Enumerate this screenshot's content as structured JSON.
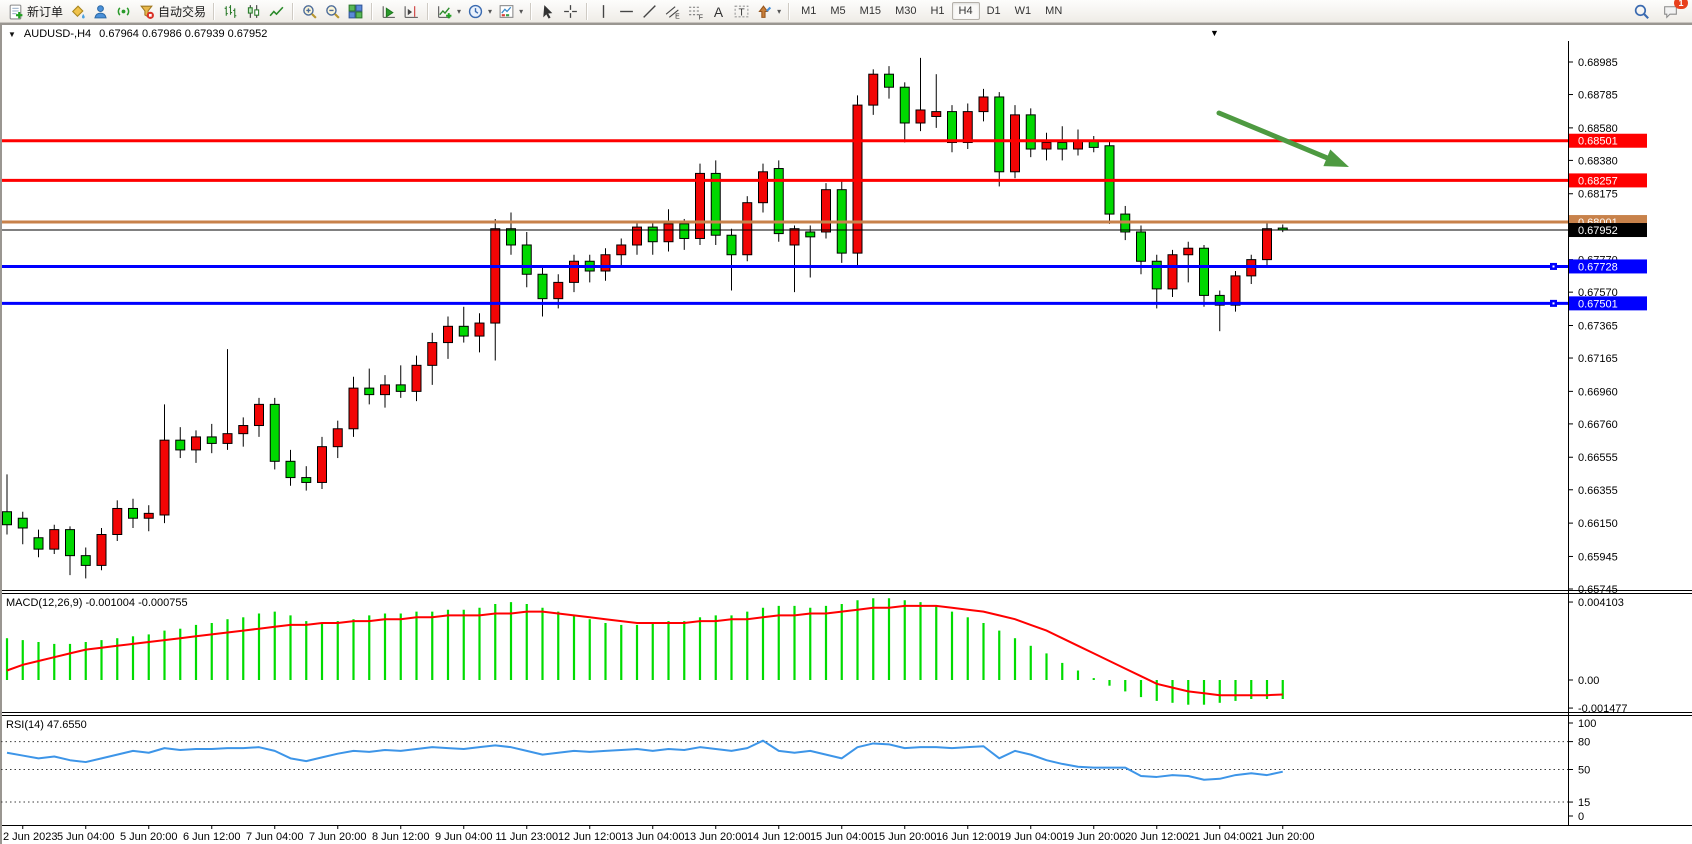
{
  "window": {
    "title_symbol": "AUDUSD-,H4",
    "ohlc": "0.67964 0.67986 0.67939 0.67952",
    "shift_marker": "▼"
  },
  "toolbar": {
    "groups": [
      {
        "items": [
          {
            "name": "new-order-button",
            "icon": "new-order-icon",
            "label": "新订单"
          },
          {
            "name": "styler-button",
            "icon": "bucket-icon"
          },
          {
            "name": "profile-button",
            "icon": "profile-icon"
          },
          {
            "name": "signals-button",
            "icon": "signal-icon"
          },
          {
            "name": "autotrade-button",
            "icon": "autotrade-icon",
            "label": "自动交易"
          }
        ]
      },
      {
        "items": [
          {
            "name": "bar-chart-button",
            "icon": "bar-chart-icon"
          },
          {
            "name": "candlestick-button",
            "icon": "candlestick-icon"
          },
          {
            "name": "line-chart-button",
            "icon": "line-chart-icon"
          }
        ]
      },
      {
        "items": [
          {
            "name": "zoom-in-button",
            "icon": "zoom-in-icon"
          },
          {
            "name": "zoom-out-button",
            "icon": "zoom-out-icon"
          },
          {
            "name": "tile-windows-button",
            "icon": "tile-windows-icon"
          }
        ]
      },
      {
        "items": [
          {
            "name": "autoscroll-button",
            "icon": "autoscroll-icon"
          },
          {
            "name": "chart-shift-button",
            "icon": "chart-shift-icon"
          }
        ]
      },
      {
        "items": [
          {
            "name": "indicators-button",
            "icon": "indicators-icon",
            "caret": true
          },
          {
            "name": "periods-button",
            "icon": "periods-icon",
            "caret": true
          },
          {
            "name": "templates-button",
            "icon": "templates-icon",
            "caret": true
          }
        ]
      },
      {
        "items": [
          {
            "name": "cursor-button",
            "icon": "cursor-icon"
          },
          {
            "name": "crosshair-button",
            "icon": "crosshair-icon"
          }
        ]
      },
      {
        "items": [
          {
            "name": "vline-button",
            "icon": "vline-icon"
          },
          {
            "name": "hline-button",
            "icon": "hline-icon"
          },
          {
            "name": "trendline-button",
            "icon": "trendline-icon"
          },
          {
            "name": "channel-button",
            "icon": "channel-icon"
          },
          {
            "name": "fibonacci-button",
            "icon": "fibonacci-icon"
          },
          {
            "name": "text-button",
            "icon": "text-icon"
          },
          {
            "name": "label-button",
            "icon": "label-icon"
          },
          {
            "name": "shapes-button",
            "icon": "shapes-icon",
            "caret": true
          }
        ]
      }
    ],
    "timeframes": {
      "items": [
        "M1",
        "M5",
        "M15",
        "M30",
        "H1",
        "H4",
        "D1",
        "W1",
        "MN"
      ],
      "active": "H4"
    },
    "right": [
      {
        "name": "search-button",
        "icon": "search-icon"
      },
      {
        "name": "chat-button",
        "icon": "chat-icon",
        "badge": "1"
      }
    ]
  },
  "colors": {
    "bull": "#f20505",
    "bear": "#00d800",
    "outline": "#000000",
    "macd_hist": "#00dc00",
    "macd_signal": "#ff0000",
    "rsi_line": "#3d95e8",
    "arrow": "#4e9a41",
    "level_red": "#ff0000",
    "level_blue": "#0000ff",
    "level_orange": "#c8824b",
    "level_black": "#000000"
  },
  "price_axis": {
    "ticks": [
      "0.68985",
      "0.68785",
      "0.68580",
      "0.68380",
      "0.68175",
      "0.67770",
      "0.67570",
      "0.67365",
      "0.67165",
      "0.66960",
      "0.66760",
      "0.66555",
      "0.66355",
      "0.66150",
      "0.65945",
      "0.65745"
    ]
  },
  "levels": [
    {
      "name": "resistance-line-1",
      "price": 0.68501,
      "label": "0.68501",
      "color": "#ff0000",
      "width": 3,
      "handle": false
    },
    {
      "name": "resistance-line-2",
      "price": 0.68257,
      "label": "0.68257",
      "color": "#ff0000",
      "width": 3,
      "handle": false
    },
    {
      "name": "order-line",
      "price": 0.68001,
      "label": "0.68001",
      "color": "#c8824b",
      "width": 3,
      "handle": false
    },
    {
      "name": "current-price-line",
      "price": 0.67952,
      "label": "0.67952",
      "color": "#000000",
      "width": 1,
      "handle": false
    },
    {
      "name": "support-line-1",
      "price": 0.67728,
      "label": "0.67728",
      "color": "#0000ff",
      "width": 3,
      "handle": true
    },
    {
      "name": "support-line-2",
      "price": 0.67501,
      "label": "0.67501",
      "color": "#0000ff",
      "width": 3,
      "handle": true
    }
  ],
  "time_axis": {
    "labels": [
      "2 Jun 2023",
      "5 Jun 04:00",
      "5 Jun 20:00",
      "6 Jun 12:00",
      "7 Jun 04:00",
      "7 Jun 20:00",
      "8 Jun 12:00",
      "9 Jun 04:00",
      "11 Jun 23:00",
      "12 Jun 12:00",
      "13 Jun 04:00",
      "13 Jun 20:00",
      "14 Jun 12:00",
      "15 Jun 04:00",
      "15 Jun 20:00",
      "16 Jun 12:00",
      "19 Jun 04:00",
      "19 Jun 20:00",
      "20 Jun 12:00",
      "21 Jun 04:00",
      "21 Jun 20:00"
    ]
  },
  "candles": [
    [
      0.6622,
      0.6645,
      0.6608,
      0.6614
    ],
    [
      0.6618,
      0.6622,
      0.6602,
      0.6612
    ],
    [
      0.6606,
      0.6611,
      0.6594,
      0.6599
    ],
    [
      0.6599,
      0.6614,
      0.6596,
      0.6611
    ],
    [
      0.6611,
      0.6613,
      0.6583,
      0.6595
    ],
    [
      0.6595,
      0.66,
      0.6581,
      0.6589
    ],
    [
      0.6589,
      0.6612,
      0.6586,
      0.6608
    ],
    [
      0.6608,
      0.6629,
      0.6604,
      0.6624
    ],
    [
      0.6624,
      0.663,
      0.6612,
      0.6618
    ],
    [
      0.6618,
      0.6626,
      0.661,
      0.6621
    ],
    [
      0.662,
      0.6688,
      0.6615,
      0.6666
    ],
    [
      0.6666,
      0.6674,
      0.6655,
      0.666
    ],
    [
      0.666,
      0.6672,
      0.6652,
      0.6668
    ],
    [
      0.6668,
      0.6676,
      0.6658,
      0.6664
    ],
    [
      0.6664,
      0.6722,
      0.666,
      0.667
    ],
    [
      0.667,
      0.668,
      0.6662,
      0.6675
    ],
    [
      0.6675,
      0.6692,
      0.6668,
      0.6688
    ],
    [
      0.6688,
      0.6692,
      0.6648,
      0.6653
    ],
    [
      0.6653,
      0.666,
      0.6638,
      0.6643
    ],
    [
      0.6643,
      0.665,
      0.6635,
      0.664
    ],
    [
      0.664,
      0.6668,
      0.6636,
      0.6662
    ],
    [
      0.6662,
      0.6678,
      0.6655,
      0.6673
    ],
    [
      0.6673,
      0.6705,
      0.6668,
      0.6698
    ],
    [
      0.6698,
      0.671,
      0.6688,
      0.6694
    ],
    [
      0.6694,
      0.6706,
      0.6686,
      0.67
    ],
    [
      0.67,
      0.6712,
      0.6692,
      0.6696
    ],
    [
      0.6696,
      0.6718,
      0.669,
      0.6712
    ],
    [
      0.6712,
      0.6732,
      0.67,
      0.6726
    ],
    [
      0.6726,
      0.6742,
      0.6716,
      0.6736
    ],
    [
      0.6736,
      0.6748,
      0.6726,
      0.673
    ],
    [
      0.673,
      0.6744,
      0.672,
      0.6738
    ],
    [
      0.6738,
      0.6802,
      0.6715,
      0.6796
    ],
    [
      0.6796,
      0.6806,
      0.678,
      0.6786
    ],
    [
      0.6786,
      0.6794,
      0.676,
      0.6768
    ],
    [
      0.6768,
      0.6772,
      0.6742,
      0.6753
    ],
    [
      0.6753,
      0.6768,
      0.6747,
      0.6763
    ],
    [
      0.6763,
      0.678,
      0.6757,
      0.6776
    ],
    [
      0.6776,
      0.678,
      0.6763,
      0.677
    ],
    [
      0.677,
      0.6784,
      0.6764,
      0.678
    ],
    [
      0.678,
      0.679,
      0.6772,
      0.6786
    ],
    [
      0.6786,
      0.6801,
      0.678,
      0.6797
    ],
    [
      0.6797,
      0.68,
      0.678,
      0.6788
    ],
    [
      0.6788,
      0.6808,
      0.6782,
      0.6799
    ],
    [
      0.6799,
      0.6802,
      0.6783,
      0.679
    ],
    [
      0.679,
      0.6836,
      0.6786,
      0.683
    ],
    [
      0.683,
      0.6838,
      0.6786,
      0.6792
    ],
    [
      0.6792,
      0.6796,
      0.6758,
      0.678
    ],
    [
      0.678,
      0.6816,
      0.6776,
      0.6812
    ],
    [
      0.6812,
      0.6836,
      0.6806,
      0.6831
    ],
    [
      0.6833,
      0.6838,
      0.6788,
      0.6793
    ],
    [
      0.6786,
      0.6798,
      0.6757,
      0.6796
    ],
    [
      0.6794,
      0.6798,
      0.6766,
      0.6791
    ],
    [
      0.6794,
      0.6824,
      0.679,
      0.682
    ],
    [
      0.682,
      0.6826,
      0.6775,
      0.6781
    ],
    [
      0.6781,
      0.6878,
      0.6772,
      0.6872
    ],
    [
      0.6872,
      0.6894,
      0.6866,
      0.6891
    ],
    [
      0.6891,
      0.6896,
      0.6876,
      0.6883
    ],
    [
      0.6883,
      0.6886,
      0.6849,
      0.6861
    ],
    [
      0.6861,
      0.6901,
      0.6856,
      0.6869
    ],
    [
      0.6865,
      0.6891,
      0.6858,
      0.6868
    ],
    [
      0.6868,
      0.6872,
      0.6843,
      0.6849
    ],
    [
      0.6849,
      0.6873,
      0.6845,
      0.6868
    ],
    [
      0.6868,
      0.6882,
      0.6862,
      0.6877
    ],
    [
      0.6877,
      0.688,
      0.6822,
      0.6831
    ],
    [
      0.6831,
      0.6872,
      0.6827,
      0.6866
    ],
    [
      0.6866,
      0.687,
      0.684,
      0.6845
    ],
    [
      0.6845,
      0.6855,
      0.6838,
      0.6849
    ],
    [
      0.6849,
      0.6859,
      0.6838,
      0.6845
    ],
    [
      0.6845,
      0.6857,
      0.6841,
      0.685
    ],
    [
      0.685,
      0.6853,
      0.6843,
      0.6846
    ],
    [
      0.6847,
      0.685,
      0.6799,
      0.6805
    ],
    [
      0.6805,
      0.681,
      0.6789,
      0.6794
    ],
    [
      0.6794,
      0.6798,
      0.6768,
      0.6776
    ],
    [
      0.6776,
      0.678,
      0.6747,
      0.6759
    ],
    [
      0.6759,
      0.6783,
      0.6754,
      0.678
    ],
    [
      0.678,
      0.6788,
      0.6763,
      0.6784
    ],
    [
      0.6784,
      0.6786,
      0.6748,
      0.6755
    ],
    [
      0.6755,
      0.6758,
      0.6733,
      0.6749
    ],
    [
      0.6749,
      0.677,
      0.6745,
      0.6767
    ],
    [
      0.6767,
      0.678,
      0.6762,
      0.6777
    ],
    [
      0.6777,
      0.68,
      0.6772,
      0.6796
    ],
    [
      0.67964,
      0.67986,
      0.67939,
      0.67952
    ]
  ],
  "macd": {
    "label": "MACD(12,26,9) -0.001004 -0.000755",
    "params": "12,26,9",
    "value": "-0.001004",
    "signal_value": "-0.000755",
    "axis_ticks": [
      "0.004103",
      "0.00",
      "-0.001477"
    ],
    "hist": [
      0.0022,
      0.0021,
      0.002,
      0.0019,
      0.0019,
      0.002,
      0.0021,
      0.0022,
      0.0023,
      0.0024,
      0.0026,
      0.0027,
      0.0029,
      0.003,
      0.0032,
      0.0033,
      0.0035,
      0.0036,
      0.0034,
      0.0031,
      0.003,
      0.0031,
      0.0032,
      0.0034,
      0.0035,
      0.0035,
      0.0036,
      0.0036,
      0.0037,
      0.0037,
      0.0038,
      0.004,
      0.0041,
      0.004,
      0.0038,
      0.0036,
      0.0034,
      0.0032,
      0.003,
      0.0029,
      0.0029,
      0.003,
      0.0031,
      0.0031,
      0.0033,
      0.0034,
      0.0034,
      0.0036,
      0.0038,
      0.0039,
      0.0039,
      0.0038,
      0.0039,
      0.004,
      0.0042,
      0.0043,
      0.0043,
      0.0042,
      0.0041,
      0.0039,
      0.0036,
      0.0033,
      0.003,
      0.0026,
      0.0022,
      0.0018,
      0.0014,
      0.0009,
      0.0005,
      0.0001,
      -0.0003,
      -0.0006,
      -0.0009,
      -0.0011,
      -0.0012,
      -0.0013,
      -0.0013,
      -0.0012,
      -0.0011,
      -0.001,
      -0.001,
      -0.001
    ],
    "signal": [
      0.0005,
      0.0008,
      0.001,
      0.0012,
      0.0014,
      0.0016,
      0.0017,
      0.0018,
      0.0019,
      0.002,
      0.0021,
      0.0022,
      0.0023,
      0.0024,
      0.0025,
      0.0026,
      0.0027,
      0.0028,
      0.0029,
      0.0029,
      0.003,
      0.003,
      0.0031,
      0.0031,
      0.0032,
      0.0032,
      0.0033,
      0.0033,
      0.0034,
      0.0034,
      0.0034,
      0.0035,
      0.0035,
      0.0036,
      0.0036,
      0.0035,
      0.0034,
      0.0033,
      0.0032,
      0.0031,
      0.003,
      0.003,
      0.003,
      0.003,
      0.0031,
      0.0031,
      0.0032,
      0.0032,
      0.0033,
      0.0034,
      0.0034,
      0.0035,
      0.0035,
      0.0036,
      0.0037,
      0.0038,
      0.0038,
      0.0039,
      0.0039,
      0.0039,
      0.0038,
      0.0037,
      0.0036,
      0.0034,
      0.0032,
      0.0029,
      0.0026,
      0.0022,
      0.0018,
      0.0014,
      0.001,
      0.0006,
      0.0002,
      -0.0002,
      -0.0004,
      -0.0006,
      -0.0007,
      -0.0008,
      -0.0008,
      -0.0008,
      -0.0008,
      -0.00076
    ]
  },
  "rsi": {
    "label": "RSI(14) 47.6550",
    "period": "14",
    "value": "47.6550",
    "axis_ticks": [
      "100",
      "80",
      "50",
      "15",
      "0"
    ],
    "level_lines": [
      80,
      50,
      15
    ],
    "values": [
      68,
      65,
      62,
      64,
      60,
      58,
      62,
      66,
      70,
      68,
      73,
      71,
      72,
      72,
      73,
      73,
      74,
      70,
      62,
      59,
      63,
      67,
      70,
      69,
      71,
      70,
      72,
      74,
      73,
      72,
      74,
      76,
      74,
      70,
      66,
      68,
      70,
      69,
      70,
      71,
      72,
      70,
      72,
      71,
      74,
      72,
      70,
      73,
      81,
      70,
      68,
      70,
      66,
      62,
      74,
      78,
      77,
      73,
      74,
      74,
      73,
      74,
      75,
      62,
      70,
      66,
      60,
      56,
      53,
      52,
      52,
      52,
      43,
      42,
      44,
      43,
      39,
      40,
      44,
      46,
      44,
      47.66
    ]
  },
  "annotations": {
    "trend_arrow": {
      "from": [
        1218,
        112
      ],
      "to": [
        1348,
        166
      ],
      "color": "#4e9a41"
    }
  }
}
